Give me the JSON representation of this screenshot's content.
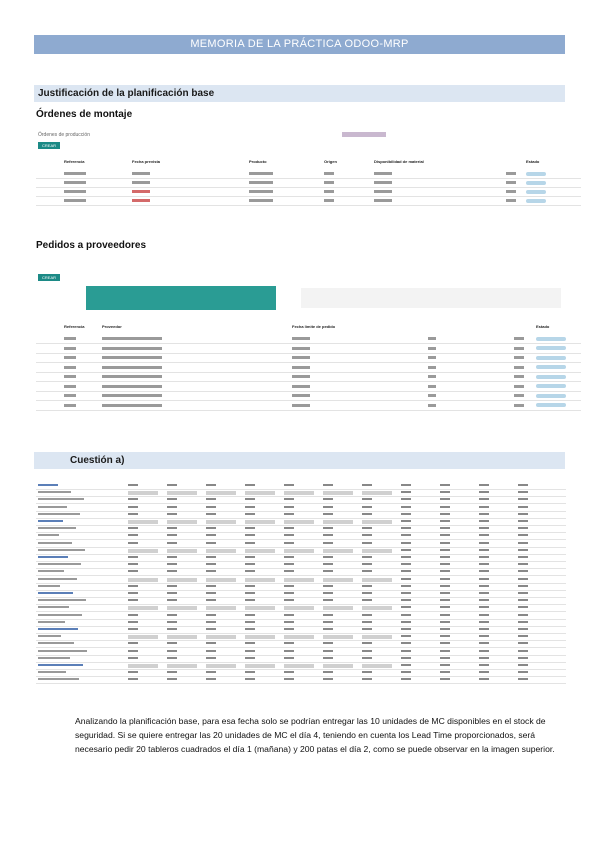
{
  "title": "MEMORIA DE LA PRÁCTICA ODOO-MRP",
  "section": "Justificación de la planificación base",
  "orders": {
    "heading": "Órdenes de montaje",
    "view_title": "Órdenes de producción",
    "button": "CREAR",
    "columns": [
      "Referencia",
      "Fecha prevista",
      "Producto",
      "Origen",
      "Disponibilidad de material",
      "Estado"
    ]
  },
  "purchases": {
    "heading": "Pedidos a proveedores",
    "button": "CREAR",
    "columns": [
      "Referencia",
      "Proveedor",
      "Fecha límite de pedido",
      "Estado"
    ]
  },
  "question": "Cuestión a)",
  "paragraph": "Analizando la planificación base, para esa fecha solo se podrían entregar las 10 unidades de MC disponibles en el stock de seguridad. Si se quiere entregar las 20 unidades de MC el día 4, teniendo en cuenta los Lead Time proporcionados, será necesario pedir 20 tableros cuadrados el día 1 (mañana) y 200 patas el día 2, como se puede observar en la imagen superior."
}
